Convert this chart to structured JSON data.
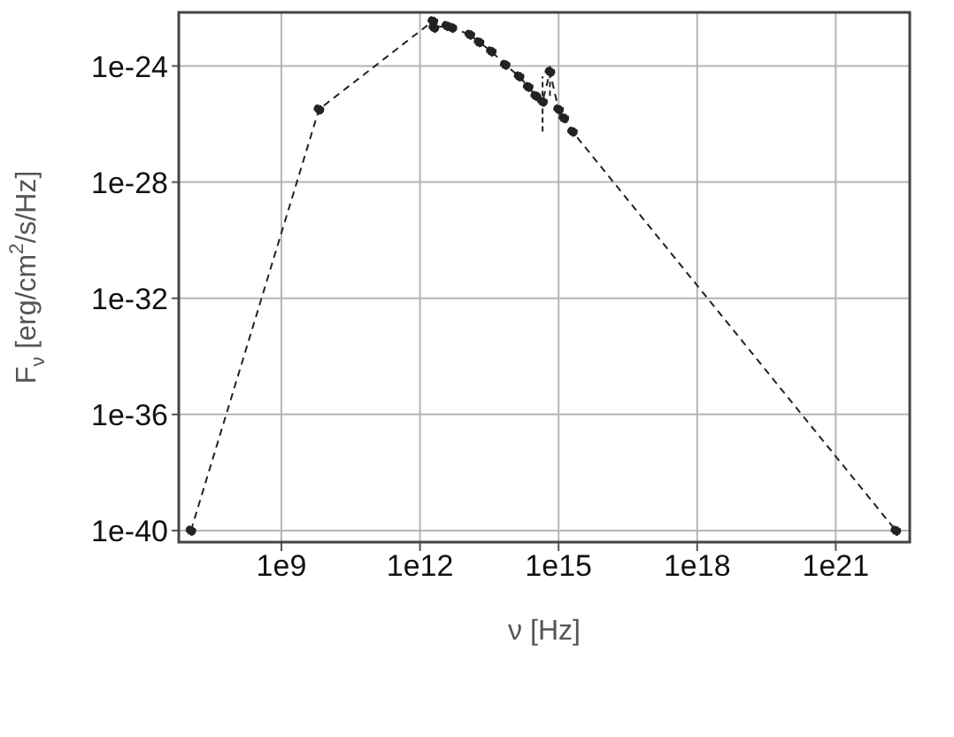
{
  "chart_data": {
    "type": "line",
    "xlabel": "ν [Hz]",
    "ylabel": "F$_{ν}$ [erg/cm$^{2}$/s/Hz]",
    "log": "xy",
    "grid": true,
    "marker": "circle",
    "line_style": "dashed",
    "xlim": [
      6000000.0,
      4e+22
    ],
    "ylim": [
      4e-41,
      7e-23
    ],
    "xticks": [
      {
        "value": 1000000000.0,
        "label": "1e9"
      },
      {
        "value": 1000000000000.0,
        "label": "1e12"
      },
      {
        "value": 1000000000000000.0,
        "label": "1e15"
      },
      {
        "value": 1e+18,
        "label": "1e18"
      },
      {
        "value": 1e+21,
        "label": "1e21"
      }
    ],
    "yticks": [
      1e-40,
      1e-36,
      1e-32,
      1e-28,
      1e-24
    ],
    "series": [
      {
        "color": "#222222",
        "x": [
          11000000.0,
          6500000000.0,
          1900000000000.0,
          2000000000000.0,
          3800000000000.0,
          4900000000000.0,
          12000000000000.0,
          19000000000000.0,
          35000000000000.0,
          70000000000000.0,
          140000000000000.0,
          220000000000000.0,
          320000000000000.0,
          450000000000000.0,
          650000000000000.0,
          1000000000000000.0,
          1300000000000000.0,
          2000000000000000.0,
          2e+22
        ],
        "values": [
          1e-40,
          3.2e-26,
          3.5e-23,
          2.1e-23,
          2.4e-23,
          2.1e-23,
          1.2e-23,
          6.6e-24,
          3.2e-24,
          1.1e-24,
          4.4e-25,
          1.9e-25,
          9.4e-26,
          5.9e-26,
          6.3e-25,
          3.2e-26,
          1.6e-26,
          5.5e-27,
          1e-40
        ],
        "errors": [
          null,
          null,
          null,
          null,
          null,
          null,
          null,
          null,
          null,
          null,
          null,
          null,
          null,
          [
            5.5e-27,
            4.4e-25
          ],
          [
            9.4e-26,
            1e-24
          ],
          null,
          null,
          null,
          null
        ]
      }
    ]
  }
}
